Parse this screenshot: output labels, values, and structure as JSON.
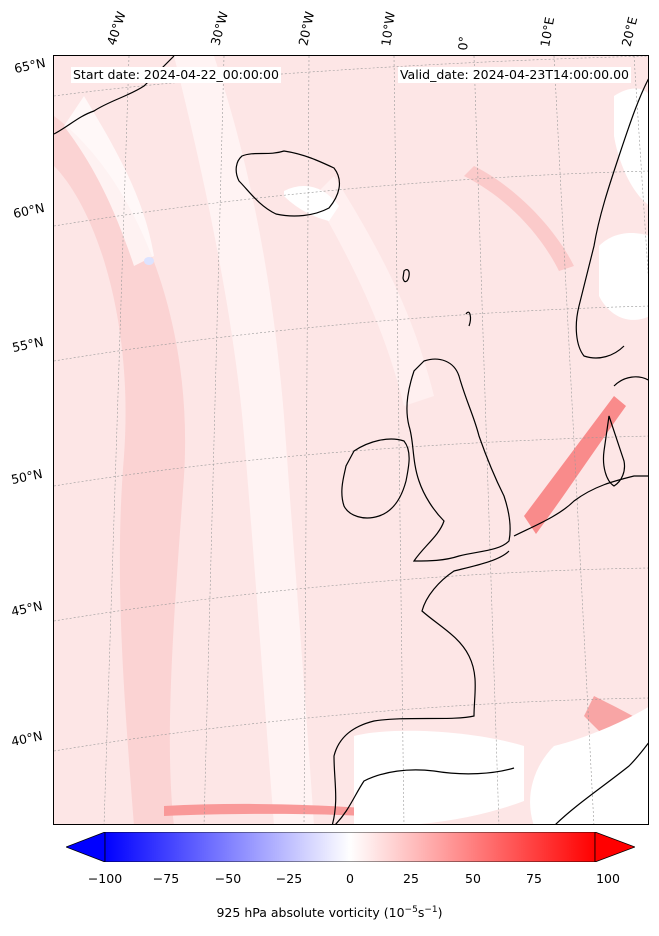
{
  "header": {
    "start_date": "Start date: 2024-04-22_00:00:00",
    "valid_date": "Valid_date: 2024-04-23T14:00:00.00"
  },
  "lon_labels": [
    "40°W",
    "30°W",
    "20°W",
    "10°W",
    "0°",
    "10°E",
    "20°E"
  ],
  "lat_labels": [
    "65°N",
    "60°N",
    "55°N",
    "50°N",
    "45°N",
    "40°N"
  ],
  "colorbar": {
    "min": -100,
    "max": 100,
    "ticks": [
      "−100",
      "−75",
      "−50",
      "−25",
      "0",
      "25",
      "50",
      "75",
      "100"
    ],
    "title": "925 hPa absolute vorticity (10",
    "title_exp1": "−5",
    "title_mid": "s",
    "title_exp2": "−1",
    "title_end": ")",
    "colors": {
      "negative": "#0000ff",
      "zero": "#ffffff",
      "positive": "#ff0000"
    }
  }
}
